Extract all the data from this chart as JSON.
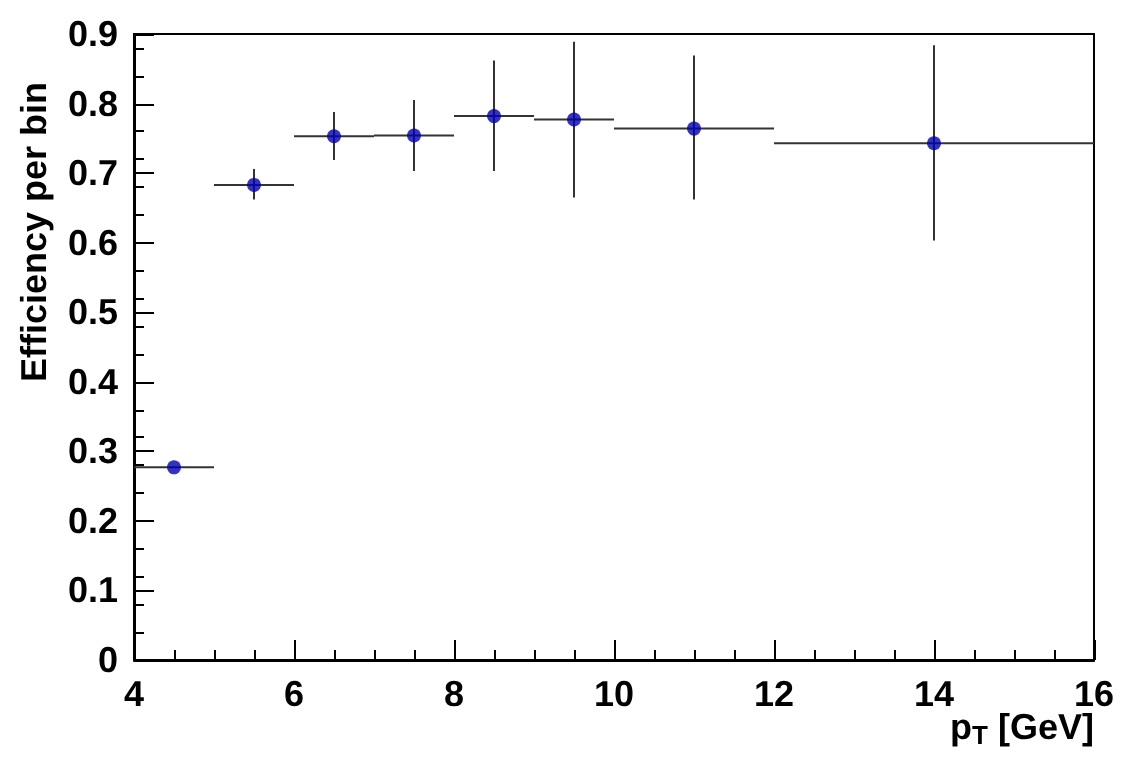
{
  "chart_data": {
    "type": "scatter",
    "xlabel": "p$_{T}$ [GeV]",
    "ylabel": "Efficiency per bin",
    "x": [
      4.5,
      5.5,
      6.5,
      7.5,
      8.5,
      9.5,
      11,
      14
    ],
    "series": [
      {
        "color": "#0000b0",
        "values": [
          0.277,
          0.683,
          0.753,
          0.754,
          0.782,
          0.777,
          0.764,
          0.743
        ],
        "errors": [
          null,
          [
            0.662,
            0.706
          ],
          [
            0.719,
            0.788
          ],
          [
            0.703,
            0.805
          ],
          [
            0.703,
            0.862
          ],
          [
            0.665,
            0.889
          ],
          [
            0.662,
            0.869
          ],
          [
            0.603,
            0.884
          ]
        ],
        "xerrors": [
          0.5,
          0.5,
          0.5,
          0.5,
          0.5,
          0.5,
          1,
          2
        ]
      }
    ],
    "xlim": [
      4,
      16
    ],
    "xticks": [
      4,
      6,
      8,
      10,
      12,
      14,
      16
    ],
    "ylim": [
      0,
      0.9
    ],
    "yticks": [
      0,
      0.1,
      0.2,
      0.3,
      0.4,
      0.5,
      0.6,
      0.7,
      0.8,
      0.9
    ],
    "grid": false,
    "marker": "circle"
  }
}
